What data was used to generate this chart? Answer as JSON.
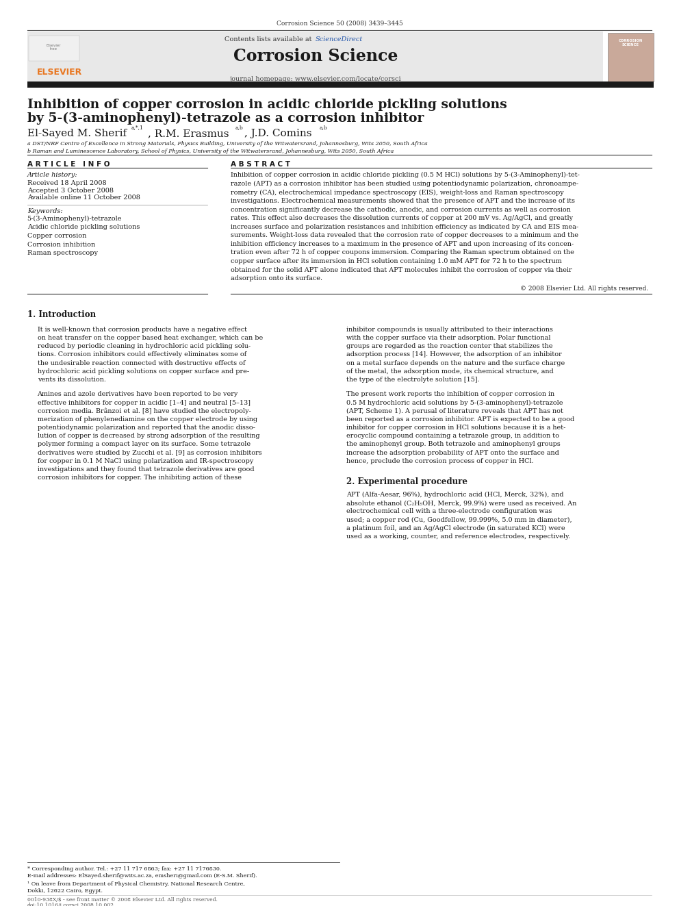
{
  "page_width": 9.92,
  "page_height": 13.23,
  "bg_color": "#ffffff",
  "top_citation": "Corrosion Science 50 (2008) 3439–3445",
  "header_bg": "#e8e8e8",
  "header_contents": "Contents lists available at",
  "header_sciencedirect": "ScienceDirect",
  "header_journal": "Corrosion Science",
  "header_homepage_label": "journal homepage: www.elsevier.com/locate/corsci",
  "thick_bar_color": "#1a1a1a",
  "elsevier_color": "#e87722",
  "article_title_line1": "Inhibition of copper corrosion in acidic chloride pickling solutions",
  "article_title_line2": "by 5-(3-aminophenyl)-tetrazole as a corrosion inhibitor",
  "affil_a": "a DST/NRF Centre of Excellence in Strong Materials, Physics Building, University of the Witwatersrand, Johannesburg, Wits 2050, South Africa",
  "affil_b": "b Raman and Luminescence Laboratory, School of Physics, University of the Witwatersrand, Johannesburg, Wits 2050, South Africa",
  "section_article_info": "A R T I C L E   I N F O",
  "section_abstract": "A B S T R A C T",
  "article_history_label": "Article history:",
  "received": "Received 18 April 2008",
  "accepted": "Accepted 3 October 2008",
  "available": "Available online 11 October 2008",
  "keywords_label": "Keywords:",
  "keyword1": "5-(3-Aminophenyl)-tetrazole",
  "keyword2": "Acidic chloride pickling solutions",
  "keyword3": "Copper corrosion",
  "keyword4": "Corrosion inhibition",
  "keyword5": "Raman spectroscopy",
  "abstract_text": "Inhibition of copper corrosion in acidic chloride pickling (0.5 M HCl) solutions by 5-(3-Aminophenyl)-tet-\nrazole (APT) as a corrosion inhibitor has been studied using potentiodynamic polarization, chronoampe-\nrometry (CA), electrochemical impedance spectroscopy (EIS), weight-loss and Raman spectroscopy\ninvestigations. Electrochemical measurements showed that the presence of APT and the increase of its\nconcentration significantly decrease the cathodic, anodic, and corrosion currents as well as corrosion\nrates. This effect also decreases the dissolution currents of copper at 200 mV vs. Ag/AgCl, and greatly\nincreases surface and polarization resistances and inhibition efficiency as indicated by CA and EIS mea-\nsurements. Weight-loss data revealed that the corrosion rate of copper decreases to a minimum and the\ninhibition efficiency increases to a maximum in the presence of APT and upon increasing of its concen-\ntration even after 72 h of copper coupons immersion. Comparing the Raman spectrum obtained on the\ncopper surface after its immersion in HCl solution containing 1.0 mM APT for 72 h to the spectrum\nobtained for the solid APT alone indicated that APT molecules inhibit the corrosion of copper via their\nadsorption onto its surface.",
  "copyright": "© 2008 Elsevier Ltd. All rights reserved.",
  "intro_section": "1. Introduction",
  "intro_col1_para1": "It is well-known that corrosion products have a negative effect\non heat transfer on the copper based heat exchanger, which can be\nreduced by periodic cleaning in hydrochloric acid pickling solu-\ntions. Corrosion inhibitors could effectively eliminates some of\nthe undesirable reaction connected with destructive effects of\nhydrochloric acid pickling solutions on copper surface and pre-\nvents its dissolution.",
  "intro_col1_para2": "Amines and azole derivatives have been reported to be very\neffective inhibitors for copper in acidic [1–4] and neutral [5–13]\ncorrosion media. Brânzoi et al. [8] have studied the electropoly-\nmerization of phenylenediamine on the copper electrode by using\npotentiodynamic polarization and reported that the anodic disso-\nlution of copper is decreased by strong adsorption of the resulting\npolymer forming a compact layer on its surface. Some tetrazole\nderivatives were studied by Zucchi et al. [9] as corrosion inhibitors\nfor copper in 0.1 M NaCl using polarization and IR-spectroscopy\ninvestigations and they found that tetrazole derivatives are good\ncorrosion inhibitors for copper. The inhibiting action of these",
  "intro_col2_para1": "inhibitor compounds is usually attributed to their interactions\nwith the copper surface via their adsorption. Polar functional\ngroups are regarded as the reaction center that stabilizes the\nadsorption process [14]. However, the adsorption of an inhibitor\non a metal surface depends on the nature and the surface charge\nof the metal, the adsorption mode, its chemical structure, and\nthe type of the electrolyte solution [15].",
  "intro_col2_para2": "The present work reports the inhibition of copper corrosion in\n0.5 M hydrochloric acid solutions by 5-(3-aminophenyl)-tetrazole\n(APT, Scheme 1). A perusal of literature reveals that APT has not\nbeen reported as a corrosion inhibitor. APT is expected to be a good\ninhibitor for copper corrosion in HCl solutions because it is a het-\nerocyclic compound containing a tetrazole group, in addition to\nthe aminophenyl group. Both tetrazole and aminophenyl groups\nincrease the adsorption probability of APT onto the surface and\nhence, preclude the corrosion process of copper in HCl.",
  "exp_section": "2. Experimental procedure",
  "exp_col2_text": "APT (Alfa-Aesar, 96%), hydrochloric acid (HCl, Merck, 32%), and\nabsolute ethanol (C₂H₅OH, Merck, 99.9%) were used as received. An\nelectrochemical cell with a three-electrode configuration was\nused; a copper rod (Cu, Goodfellow, 99.999%, 5.0 mm in diameter),\na platinum foil, and an Ag/AgCl electrode (in saturated KCl) were\nused as a working, counter, and reference electrodes, respectively.",
  "footnote_star": "* Corresponding author. Tel.: +27 11 717 6863; fax: +27 11 7176830.",
  "footnote_email": "E-mail addresses: ElSayed.sherif@wits.ac.za, emsheri@gmail.com (E-S.M. Sherif).",
  "footnote_1a": "¹ On leave from Department of Physical Chemistry, National Research Centre,",
  "footnote_1b": "Dokki, 12622 Cairo, Egypt.",
  "bottom_line1": "0010-938X/$ - see front matter © 2008 Elsevier Ltd. All rights reserved.",
  "bottom_line2": "doi:10.1016/j.corsci.2008.10.002"
}
